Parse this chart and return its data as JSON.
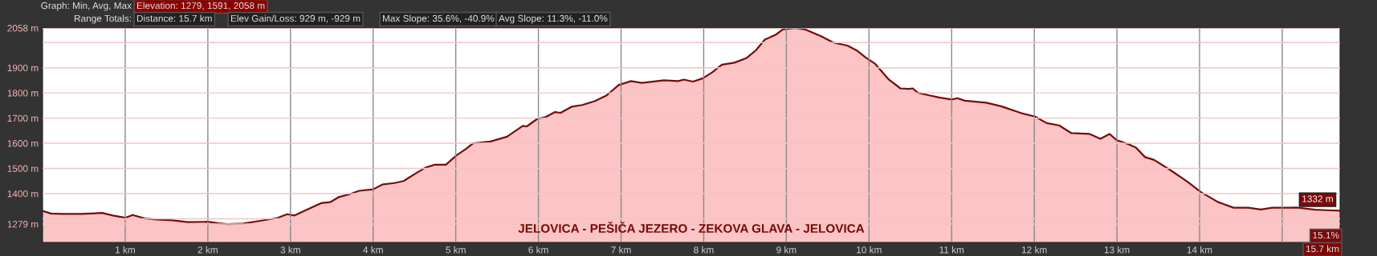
{
  "chart_data": {
    "type": "area",
    "title": "JELOVICA - PEŠIČA JEZERO - ZEKOVA GLAVA - JELOVICA",
    "x": [
      0,
      0.1,
      0.23,
      0.47,
      0.59,
      0.72,
      0.85,
      1.0,
      1.09,
      1.24,
      1.38,
      1.57,
      1.76,
      2.0,
      2.13,
      2.24,
      2.43,
      2.62,
      2.84,
      2.96,
      3.05,
      3.18,
      3.37,
      3.48,
      3.59,
      3.7,
      3.83,
      4.0,
      4.11,
      4.26,
      4.37,
      4.49,
      4.63,
      4.75,
      4.88,
      5.01,
      5.12,
      5.21,
      5.24,
      5.42,
      5.62,
      5.81,
      5.86,
      5.99,
      6.08,
      6.2,
      6.27,
      6.4,
      6.53,
      6.68,
      6.82,
      6.97,
      7.12,
      7.25,
      7.52,
      7.69,
      7.76,
      7.87,
      7.99,
      8.1,
      8.22,
      8.37,
      8.52,
      8.63,
      8.74,
      8.87,
      8.96,
      9.11,
      9.22,
      9.41,
      9.57,
      9.74,
      9.85,
      9.96,
      10.07,
      10.24,
      10.38,
      10.48,
      10.53,
      10.59,
      10.72,
      10.85,
      11.0,
      11.07,
      11.16,
      11.42,
      11.6,
      11.86,
      12.01,
      12.15,
      12.3,
      12.45,
      12.67,
      12.8,
      12.91,
      13.0,
      13.15,
      13.23,
      13.34,
      13.45,
      13.63,
      13.85,
      14.02,
      14.22,
      14.41,
      14.59,
      14.74,
      14.88,
      15.1,
      15.17,
      15.4,
      15.54,
      15.7
    ],
    "series": [
      {
        "color": "#7a0a0a",
        "values": [
          1331,
          1321,
          1319,
          1319,
          1321,
          1323,
          1313,
          1304,
          1315,
          1301,
          1297,
          1294,
          1287,
          1288,
          1282,
          1279,
          1281,
          1291,
          1303,
          1318,
          1313,
          1333,
          1362,
          1366,
          1387,
          1396,
          1411,
          1417,
          1436,
          1442,
          1450,
          1475,
          1503,
          1515,
          1515,
          1552,
          1577,
          1600,
          1601,
          1607,
          1626,
          1669,
          1667,
          1698,
          1703,
          1724,
          1721,
          1745,
          1752,
          1767,
          1789,
          1831,
          1847,
          1840,
          1850,
          1847,
          1853,
          1845,
          1858,
          1881,
          1912,
          1920,
          1939,
          1969,
          2012,
          2031,
          2053,
          2058,
          2053,
          2027,
          2000,
          1988,
          1969,
          1941,
          1917,
          1853,
          1818,
          1816,
          1818,
          1801,
          1791,
          1782,
          1774,
          1779,
          1769,
          1761,
          1747,
          1718,
          1706,
          1680,
          1671,
          1640,
          1637,
          1618,
          1637,
          1612,
          1595,
          1583,
          1545,
          1534,
          1497,
          1448,
          1405,
          1367,
          1344,
          1344,
          1337,
          1344,
          1344,
          1345,
          1336,
          1334,
          1332
        ]
      }
    ],
    "xlim": [
      0,
      15.7
    ],
    "ylim": [
      1206,
      2058
    ],
    "xticks": [
      {
        "value": 1,
        "label": "1 km"
      },
      {
        "value": 2,
        "label": "2 km"
      },
      {
        "value": 3,
        "label": "3 km"
      },
      {
        "value": 4,
        "label": "4 km"
      },
      {
        "value": 5,
        "label": "5 km"
      },
      {
        "value": 6,
        "label": "6 km"
      },
      {
        "value": 7,
        "label": "7 km"
      },
      {
        "value": 8,
        "label": "8 km"
      },
      {
        "value": 9,
        "label": "9 km"
      },
      {
        "value": 10,
        "label": "10 km"
      },
      {
        "value": 11,
        "label": "11 km"
      },
      {
        "value": 12,
        "label": "12 km"
      },
      {
        "value": 13,
        "label": "13 km"
      },
      {
        "value": 14,
        "label": "14 km"
      },
      {
        "value": 15,
        "label": null
      }
    ],
    "yticks": [
      {
        "value": 1279,
        "label": "1279 m"
      },
      {
        "value": 1300,
        "label": null
      },
      {
        "value": 1400,
        "label": "1400 m"
      },
      {
        "value": 1500,
        "label": "1500 m"
      },
      {
        "value": 1600,
        "label": "1600 m"
      },
      {
        "value": 1700,
        "label": "1700 m"
      },
      {
        "value": 1800,
        "label": "1800 m"
      },
      {
        "value": 1900,
        "label": "1900 m"
      },
      {
        "value": 2000,
        "label": null
      },
      {
        "value": 2058,
        "label": "2058 m"
      }
    ],
    "grid": true,
    "annotations": [
      "Graph: Min, Avg, Max",
      "Elevation: 1279, 1591, 2058 m",
      "Range Totals:",
      "Distance: 15.7 km",
      "Elev Gain/Loss: 929 m, -929 m",
      "Max Slope: 35.6%, -40.9%",
      "Avg Slope: 11.3%, -11.0%",
      {
        "text": "1332 m",
        "x": 15.7,
        "y": 1332
      },
      "15.1%",
      "15.7 km"
    ]
  }
}
